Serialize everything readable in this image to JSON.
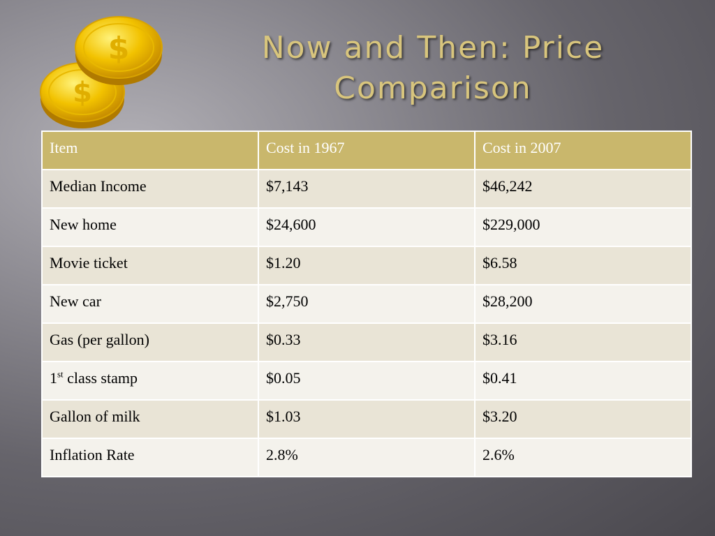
{
  "slide": {
    "title_line1": "Now and Then:  Price",
    "title_line2": "Comparison"
  },
  "decoration": {
    "icon": "gold-coins-icon",
    "accent": "#d8c57d",
    "coin_color": "#f2c200",
    "coin_glyph": "$"
  },
  "table": {
    "header_color": "#c9b76c",
    "columns": [
      "Item",
      "Cost in 1967",
      "Cost in 2007"
    ],
    "rows": [
      {
        "item": "Median Income",
        "cost_1967": "$7,143",
        "cost_2007": "$46,242"
      },
      {
        "item": "New home",
        "cost_1967": "$24,600",
        "cost_2007": "$229,000"
      },
      {
        "item": "Movie ticket",
        "cost_1967": "$1.20",
        "cost_2007": "$6.58"
      },
      {
        "item": "New car",
        "cost_1967": "$2,750",
        "cost_2007": "$28,200"
      },
      {
        "item": "Gas (per gallon)",
        "cost_1967": "$0.33",
        "cost_2007": "$3.16"
      },
      {
        "item_prefix": "1",
        "item_sup": "st",
        "item": " class stamp",
        "cost_1967": "$0.05",
        "cost_2007": "$0.41"
      },
      {
        "item": "Gallon of milk",
        "cost_1967": "$1.03",
        "cost_2007": "$3.20"
      },
      {
        "item": "Inflation Rate",
        "cost_1967": "2.8%",
        "cost_2007": "2.6%"
      }
    ]
  }
}
